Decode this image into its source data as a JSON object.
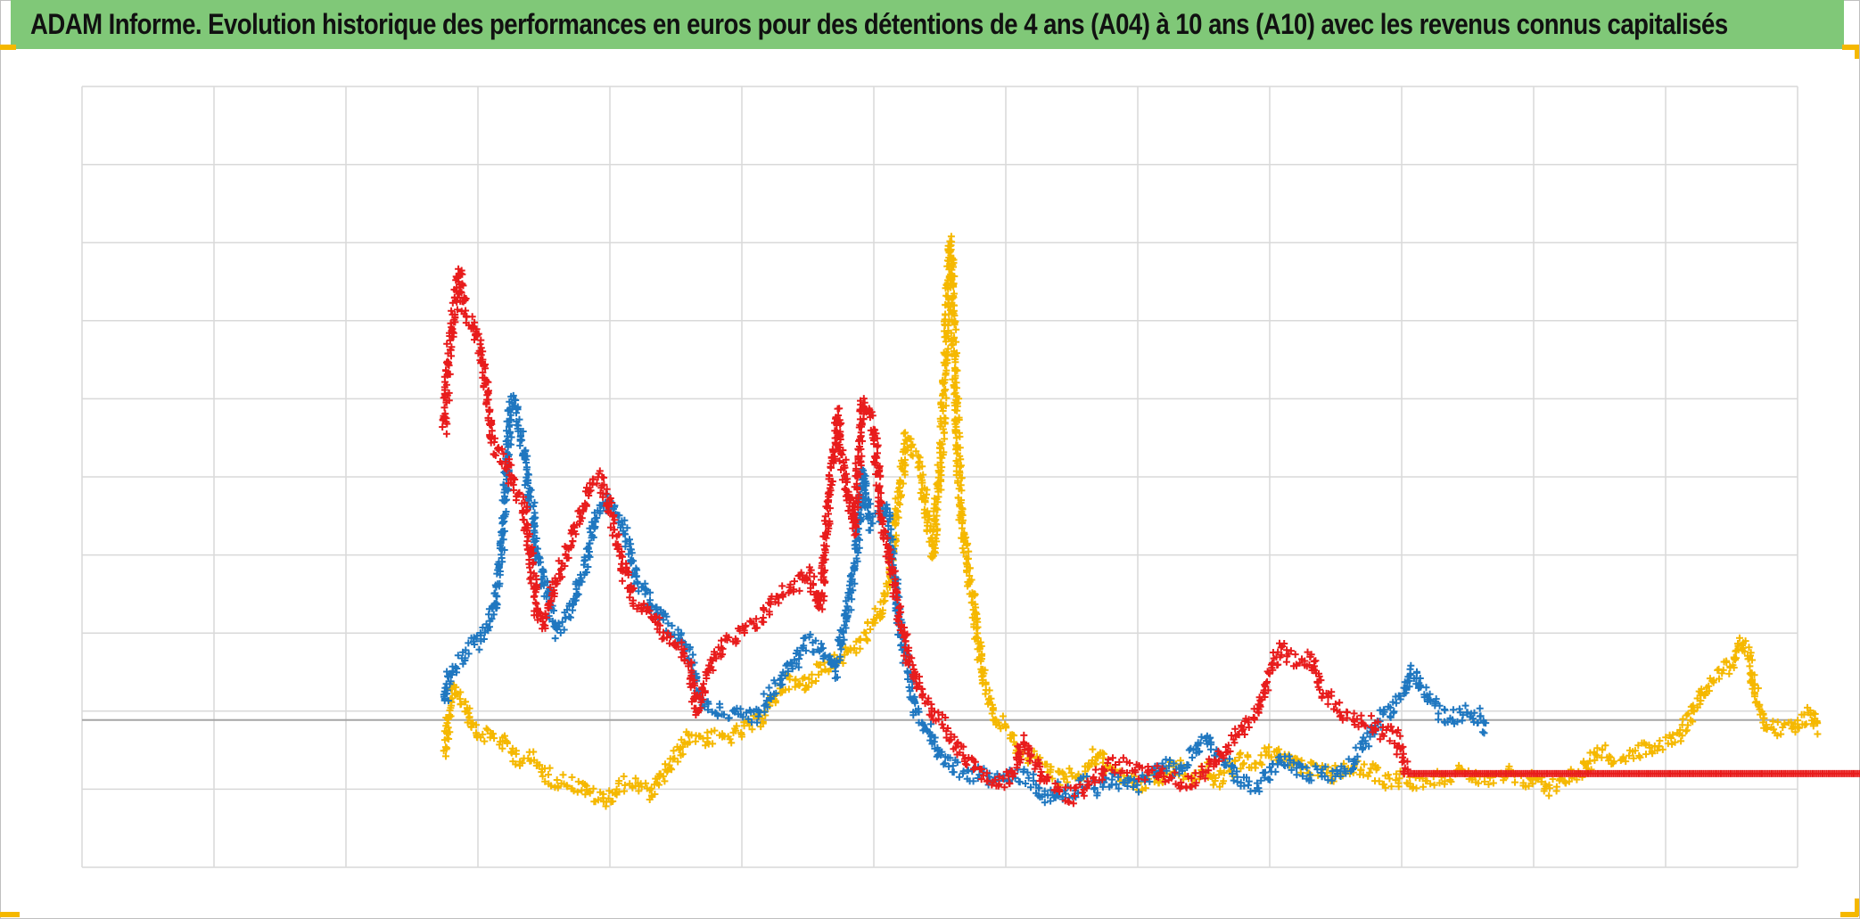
{
  "title": "ADAM Informe. Evolution historique des performances en euros pour des détentions de 4 ans (A04) à 10 ans (A10) avec les revenus connus capitalisés",
  "colors": {
    "title_background": "#80c878",
    "corner_marks": "#f5b800",
    "gridline": "#d9d9d9",
    "zero_line": "#a6a6a6"
  },
  "chart_data": {
    "type": "scatter",
    "marker": "plus",
    "title": "ADAM Informe. Evolution historique des performances en euros pour des détentions de 4 ans (A04) à 10 ans (A10) avec les revenus connus capitalisés",
    "xlabel": "",
    "ylabel": "",
    "xlim": [
      0,
      13
    ],
    "ylim": [
      -2,
      8
    ],
    "x_gridlines": 13,
    "y_gridlines": 10,
    "grid": true,
    "legend": "none",
    "series": [
      {
        "color": "#f5b800",
        "points": [
          [
            2.75,
            -0.5
          ],
          [
            2.78,
            0.0
          ],
          [
            2.82,
            0.3
          ],
          [
            2.9,
            0.1
          ],
          [
            3.0,
            -0.3
          ],
          [
            3.1,
            -0.3
          ],
          [
            3.2,
            -0.4
          ],
          [
            3.3,
            -0.6
          ],
          [
            3.4,
            -0.6
          ],
          [
            3.5,
            -0.8
          ],
          [
            3.6,
            -0.9
          ],
          [
            3.7,
            -0.9
          ],
          [
            3.8,
            -1.0
          ],
          [
            3.9,
            -1.1
          ],
          [
            3.97,
            -1.15
          ],
          [
            4.05,
            -1.0
          ],
          [
            4.15,
            -0.9
          ],
          [
            4.25,
            -1.0
          ],
          [
            4.32,
            -1.05
          ],
          [
            4.4,
            -0.85
          ],
          [
            4.5,
            -0.6
          ],
          [
            4.6,
            -0.3
          ],
          [
            4.72,
            -0.35
          ],
          [
            4.85,
            -0.35
          ],
          [
            4.95,
            -0.3
          ],
          [
            5.05,
            -0.2
          ],
          [
            5.15,
            -0.1
          ],
          [
            5.25,
            0.2
          ],
          [
            5.35,
            0.4
          ],
          [
            5.45,
            0.3
          ],
          [
            5.55,
            0.5
          ],
          [
            5.65,
            0.6
          ],
          [
            5.75,
            0.7
          ],
          [
            5.85,
            0.8
          ],
          [
            5.95,
            1.0
          ],
          [
            6.05,
            1.3
          ],
          [
            6.12,
            1.6
          ],
          [
            6.18,
            2.6
          ],
          [
            6.25,
            3.5
          ],
          [
            6.32,
            3.3
          ],
          [
            6.38,
            2.8
          ],
          [
            6.45,
            2.0
          ],
          [
            6.52,
            3.6
          ],
          [
            6.58,
            6.0
          ],
          [
            6.62,
            4.0
          ],
          [
            6.66,
            2.5
          ],
          [
            6.72,
            1.8
          ],
          [
            6.78,
            1.0
          ],
          [
            6.85,
            0.3
          ],
          [
            6.92,
            -0.1
          ],
          [
            7.0,
            -0.2
          ],
          [
            7.1,
            -0.5
          ],
          [
            7.2,
            -0.6
          ],
          [
            7.3,
            -0.7
          ],
          [
            7.4,
            -0.85
          ],
          [
            7.5,
            -0.8
          ],
          [
            7.6,
            -0.8
          ],
          [
            7.7,
            -0.5
          ],
          [
            7.8,
            -0.8
          ],
          [
            7.9,
            -0.9
          ],
          [
            8.0,
            -0.95
          ],
          [
            8.1,
            -0.9
          ],
          [
            8.2,
            -0.8
          ],
          [
            8.3,
            -0.7
          ],
          [
            8.4,
            -0.85
          ],
          [
            8.5,
            -0.7
          ],
          [
            8.6,
            -0.9
          ],
          [
            8.7,
            -0.75
          ],
          [
            8.8,
            -0.6
          ],
          [
            8.9,
            -0.65
          ],
          [
            9.0,
            -0.5
          ],
          [
            9.1,
            -0.55
          ],
          [
            9.2,
            -0.7
          ],
          [
            9.3,
            -0.75
          ],
          [
            9.4,
            -0.8
          ],
          [
            9.5,
            -0.8
          ],
          [
            9.6,
            -0.7
          ],
          [
            9.7,
            -0.75
          ],
          [
            9.8,
            -0.8
          ],
          [
            9.9,
            -0.9
          ],
          [
            10.0,
            -0.85
          ],
          [
            10.1,
            -0.9
          ],
          [
            10.2,
            -0.85
          ],
          [
            10.3,
            -0.85
          ],
          [
            10.4,
            -0.8
          ],
          [
            10.5,
            -0.8
          ],
          [
            10.6,
            -0.85
          ],
          [
            10.7,
            -0.9
          ],
          [
            10.8,
            -0.8
          ],
          [
            10.9,
            -0.9
          ],
          [
            11.0,
            -0.85
          ],
          [
            11.1,
            -1.0
          ],
          [
            11.2,
            -0.9
          ],
          [
            11.3,
            -0.8
          ],
          [
            11.4,
            -0.7
          ],
          [
            11.5,
            -0.5
          ],
          [
            11.6,
            -0.6
          ],
          [
            11.7,
            -0.6
          ],
          [
            11.8,
            -0.5
          ],
          [
            11.9,
            -0.5
          ],
          [
            12.0,
            -0.4
          ],
          [
            12.1,
            -0.3
          ],
          [
            12.2,
            0.0
          ],
          [
            12.3,
            0.3
          ],
          [
            12.4,
            0.5
          ],
          [
            12.5,
            0.6
          ],
          [
            12.57,
            0.9
          ],
          [
            12.64,
            0.6
          ],
          [
            12.7,
            0.1
          ],
          [
            12.78,
            -0.2
          ],
          [
            12.9,
            -0.25
          ],
          [
            13.0,
            -0.2
          ],
          [
            13.1,
            0.0
          ],
          [
            13.15,
            -0.25
          ]
        ]
      },
      {
        "color": "#1f77c0",
        "points": [
          [
            2.75,
            0.1
          ],
          [
            2.78,
            0.5
          ],
          [
            2.85,
            0.6
          ],
          [
            2.95,
            0.8
          ],
          [
            3.05,
            1.0
          ],
          [
            3.12,
            1.3
          ],
          [
            3.18,
            2.0
          ],
          [
            3.25,
            4.0
          ],
          [
            3.3,
            3.8
          ],
          [
            3.4,
            2.7
          ],
          [
            3.45,
            2.0
          ],
          [
            3.52,
            1.5
          ],
          [
            3.6,
            1.0
          ],
          [
            3.7,
            1.3
          ],
          [
            3.8,
            1.8
          ],
          [
            3.9,
            2.5
          ],
          [
            3.97,
            2.7
          ],
          [
            4.05,
            2.5
          ],
          [
            4.12,
            2.3
          ],
          [
            4.2,
            1.7
          ],
          [
            4.3,
            1.4
          ],
          [
            4.4,
            1.2
          ],
          [
            4.5,
            1.0
          ],
          [
            4.6,
            0.7
          ],
          [
            4.7,
            0.1
          ],
          [
            4.8,
            0.0
          ],
          [
            4.9,
            0.0
          ],
          [
            5.0,
            0.0
          ],
          [
            5.1,
            -0.1
          ],
          [
            5.2,
            0.2
          ],
          [
            5.3,
            0.4
          ],
          [
            5.4,
            0.6
          ],
          [
            5.5,
            0.9
          ],
          [
            5.6,
            0.8
          ],
          [
            5.7,
            0.5
          ],
          [
            5.8,
            1.3
          ],
          [
            5.87,
            2.0
          ],
          [
            5.92,
            3.1
          ],
          [
            5.97,
            2.4
          ],
          [
            6.05,
            2.5
          ],
          [
            6.1,
            2.6
          ],
          [
            6.15,
            1.8
          ],
          [
            6.2,
            1.0
          ],
          [
            6.25,
            0.6
          ],
          [
            6.32,
            0.0
          ],
          [
            6.4,
            -0.2
          ],
          [
            6.5,
            -0.5
          ],
          [
            6.6,
            -0.7
          ],
          [
            6.7,
            -0.8
          ],
          [
            6.8,
            -0.8
          ],
          [
            6.9,
            -0.9
          ],
          [
            7.0,
            -0.9
          ],
          [
            7.1,
            -0.8
          ],
          [
            7.2,
            -0.9
          ],
          [
            7.3,
            -1.1
          ],
          [
            7.4,
            -1.0
          ],
          [
            7.5,
            -1.05
          ],
          [
            7.6,
            -0.9
          ],
          [
            7.7,
            -1.0
          ],
          [
            7.8,
            -0.9
          ],
          [
            7.9,
            -0.9
          ],
          [
            8.0,
            -0.95
          ],
          [
            8.1,
            -0.8
          ],
          [
            8.2,
            -0.7
          ],
          [
            8.3,
            -0.75
          ],
          [
            8.4,
            -0.6
          ],
          [
            8.5,
            -0.35
          ],
          [
            8.6,
            -0.55
          ],
          [
            8.7,
            -0.7
          ],
          [
            8.8,
            -0.9
          ],
          [
            8.9,
            -0.95
          ],
          [
            9.0,
            -0.8
          ],
          [
            9.1,
            -0.6
          ],
          [
            9.2,
            -0.75
          ],
          [
            9.3,
            -0.8
          ],
          [
            9.4,
            -0.8
          ],
          [
            9.5,
            -0.8
          ],
          [
            9.6,
            -0.7
          ],
          [
            9.7,
            -0.5
          ],
          [
            9.8,
            -0.2
          ],
          [
            9.9,
            0.0
          ],
          [
            10.0,
            0.2
          ],
          [
            10.08,
            0.5
          ],
          [
            10.15,
            0.3
          ],
          [
            10.25,
            0.05
          ],
          [
            10.35,
            -0.1
          ],
          [
            10.45,
            -0.05
          ],
          [
            10.55,
            0.0
          ],
          [
            10.65,
            -0.25
          ]
        ]
      },
      {
        "color": "#e81c1c",
        "points": [
          [
            2.75,
            3.6
          ],
          [
            2.78,
            4.6
          ],
          [
            2.82,
            5.1
          ],
          [
            2.86,
            5.6
          ],
          [
            2.9,
            5.1
          ],
          [
            2.95,
            5.0
          ],
          [
            3.0,
            4.8
          ],
          [
            3.05,
            4.3
          ],
          [
            3.1,
            3.5
          ],
          [
            3.15,
            3.3
          ],
          [
            3.2,
            3.2
          ],
          [
            3.25,
            3.0
          ],
          [
            3.3,
            2.8
          ],
          [
            3.35,
            2.6
          ],
          [
            3.4,
            2.0
          ],
          [
            3.45,
            1.2
          ],
          [
            3.5,
            1.1
          ],
          [
            3.6,
            1.7
          ],
          [
            3.7,
            2.2
          ],
          [
            3.8,
            2.6
          ],
          [
            3.85,
            2.9
          ],
          [
            3.92,
            3.0
          ],
          [
            3.98,
            2.7
          ],
          [
            4.05,
            2.2
          ],
          [
            4.12,
            1.7
          ],
          [
            4.2,
            1.4
          ],
          [
            4.3,
            1.3
          ],
          [
            4.4,
            1.0
          ],
          [
            4.5,
            0.9
          ],
          [
            4.6,
            0.6
          ],
          [
            4.66,
            0.0
          ],
          [
            4.72,
            0.3
          ],
          [
            4.8,
            0.7
          ],
          [
            4.9,
            0.9
          ],
          [
            5.0,
            1.0
          ],
          [
            5.1,
            1.1
          ],
          [
            5.2,
            1.3
          ],
          [
            5.3,
            1.5
          ],
          [
            5.4,
            1.6
          ],
          [
            5.5,
            1.8
          ],
          [
            5.6,
            1.3
          ],
          [
            5.65,
            2.5
          ],
          [
            5.72,
            3.8
          ],
          [
            5.78,
            3.0
          ],
          [
            5.85,
            2.3
          ],
          [
            5.92,
            4.0
          ],
          [
            6.0,
            3.6
          ],
          [
            6.06,
            2.4
          ],
          [
            6.1,
            2.1
          ],
          [
            6.15,
            1.7
          ],
          [
            6.2,
            1.2
          ],
          [
            6.27,
            0.6
          ],
          [
            6.35,
            0.3
          ],
          [
            6.45,
            0.0
          ],
          [
            6.55,
            -0.2
          ],
          [
            6.65,
            -0.5
          ],
          [
            6.75,
            -0.7
          ],
          [
            6.85,
            -0.8
          ],
          [
            6.95,
            -0.9
          ],
          [
            7.05,
            -0.85
          ],
          [
            7.12,
            -0.4
          ],
          [
            7.2,
            -0.6
          ],
          [
            7.3,
            -0.9
          ],
          [
            7.4,
            -1.0
          ],
          [
            7.5,
            -1.1
          ],
          [
            7.6,
            -1.0
          ],
          [
            7.7,
            -0.85
          ],
          [
            7.8,
            -0.7
          ],
          [
            7.9,
            -0.7
          ],
          [
            8.0,
            -0.8
          ],
          [
            8.1,
            -0.75
          ],
          [
            8.2,
            -0.8
          ],
          [
            8.3,
            -0.9
          ],
          [
            8.4,
            -0.9
          ],
          [
            8.5,
            -0.8
          ],
          [
            8.6,
            -0.6
          ],
          [
            8.7,
            -0.4
          ],
          [
            8.8,
            -0.2
          ],
          [
            8.9,
            0.0
          ],
          [
            8.95,
            0.2
          ],
          [
            9.0,
            0.5
          ],
          [
            9.08,
            0.8
          ],
          [
            9.15,
            0.7
          ],
          [
            9.25,
            0.6
          ],
          [
            9.32,
            0.7
          ],
          [
            9.38,
            0.3
          ],
          [
            9.45,
            0.15
          ],
          [
            9.55,
            0.0
          ],
          [
            9.65,
            -0.1
          ],
          [
            9.75,
            -0.15
          ],
          [
            9.85,
            -0.3
          ],
          [
            9.95,
            -0.3
          ],
          [
            10.05,
            -0.8
          ],
          [
            13.5,
            -0.8
          ]
        ]
      }
    ]
  }
}
